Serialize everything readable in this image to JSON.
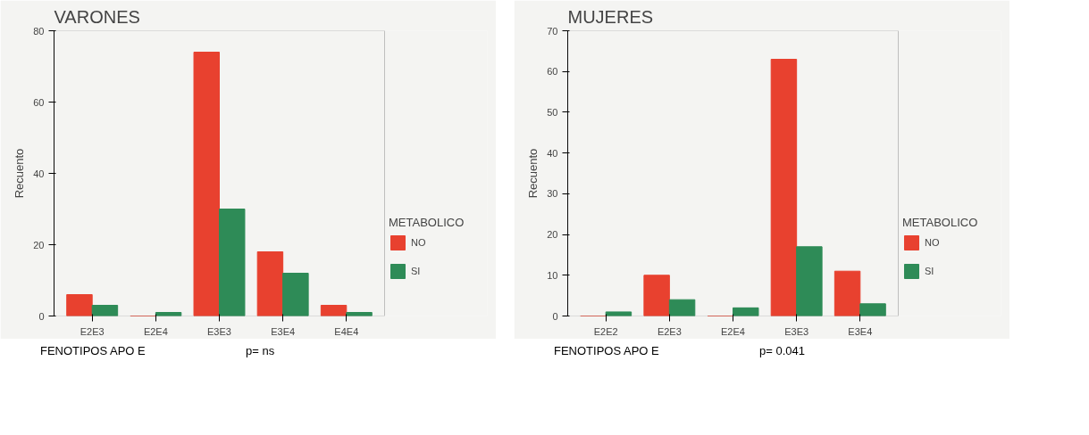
{
  "chart_data": [
    {
      "type": "bar",
      "title": "VARONES",
      "xlabel": "FENOTIPOS APO E",
      "ylabel": "Recuento",
      "categories": [
        "E2E3",
        "E2E4",
        "E3E3",
        "E3E4",
        "E4E4"
      ],
      "series": [
        {
          "name": "NO",
          "color": "#e8412f",
          "values": [
            6,
            0,
            74,
            18,
            3
          ]
        },
        {
          "name": "SI",
          "color": "#2e8b57",
          "values": [
            3,
            1,
            30,
            12,
            1
          ]
        }
      ],
      "ylim": [
        0,
        80
      ],
      "yticks": [
        0,
        20,
        40,
        60,
        80
      ],
      "legend": "right",
      "legend_title": "METABOLICO",
      "annotations": [
        "p= ns"
      ],
      "grid": false
    },
    {
      "type": "bar",
      "title": "MUJERES",
      "xlabel": "FENOTIPOS APO E",
      "ylabel": "Recuento",
      "categories": [
        "E2E2",
        "E2E3",
        "E2E4",
        "E3E3",
        "E3E4"
      ],
      "series": [
        {
          "name": "NO",
          "color": "#e8412f",
          "values": [
            0,
            10,
            0,
            63,
            11
          ]
        },
        {
          "name": "SI",
          "color": "#2e8b57",
          "values": [
            1,
            4,
            2,
            17,
            3
          ]
        }
      ],
      "ylim": [
        0,
        70
      ],
      "yticks": [
        0,
        10,
        20,
        30,
        40,
        50,
        60,
        70
      ],
      "legend": "right",
      "legend_title": "METABOLICO",
      "annotations": [
        "p= 0.041"
      ],
      "grid": false
    }
  ]
}
